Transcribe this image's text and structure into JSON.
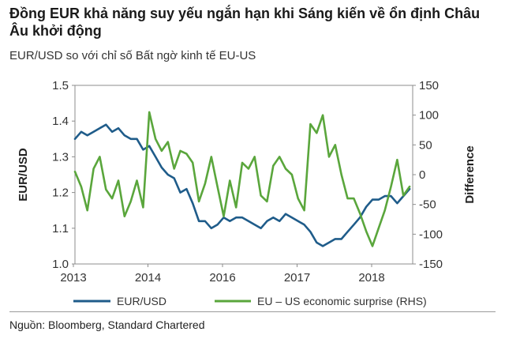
{
  "title": "Đồng EUR khả năng suy yếu ngắn hạn khi Sáng kiến về ổn định Châu Âu khởi động",
  "subtitle": "EUR/USD so với chỉ số Bất ngờ kinh tế EU-US",
  "source": "Nguồn: Bloomberg, Standard Chartered",
  "chart_data": {
    "type": "line",
    "ylabel_left": "EUR/USD",
    "ylabel_right": "Difference",
    "x_ticks": [
      "2013",
      "2014",
      "2016",
      "2017",
      "2018"
    ],
    "y_left_ticks": [
      "1.5",
      "1.4",
      "1.3",
      "1.2",
      "1.1",
      "1.0"
    ],
    "y_right_ticks": [
      "150",
      "100",
      "50",
      "0",
      "-50",
      "-100",
      "-150"
    ],
    "ylim_left": [
      1.0,
      1.5
    ],
    "ylim_right": [
      -150,
      150
    ],
    "xlim": [
      2013.0,
      2018.45
    ],
    "grid": false,
    "legend_position": "bottom",
    "series": [
      {
        "name": "EUR/USD",
        "axis": "left",
        "color": "#1f5c8a",
        "x": [
          2013.0,
          2013.1,
          2013.2,
          2013.3,
          2013.4,
          2013.5,
          2013.6,
          2013.7,
          2013.8,
          2013.9,
          2014.0,
          2014.1,
          2014.2,
          2014.3,
          2014.4,
          2014.5,
          2014.6,
          2014.7,
          2014.8,
          2014.9,
          2015.0,
          2015.1,
          2015.2,
          2015.3,
          2015.4,
          2015.5,
          2015.6,
          2015.7,
          2015.8,
          2015.9,
          2016.0,
          2016.1,
          2016.2,
          2016.3,
          2016.4,
          2016.5,
          2016.6,
          2016.7,
          2016.8,
          2016.9,
          2017.0,
          2017.1,
          2017.2,
          2017.3,
          2017.4,
          2017.5,
          2017.6,
          2017.7,
          2017.8,
          2017.9,
          2018.0,
          2018.1,
          2018.2,
          2018.3,
          2018.4
        ],
        "values": [
          1.35,
          1.37,
          1.36,
          1.37,
          1.38,
          1.39,
          1.37,
          1.38,
          1.36,
          1.35,
          1.35,
          1.32,
          1.33,
          1.3,
          1.27,
          1.25,
          1.24,
          1.2,
          1.21,
          1.17,
          1.12,
          1.12,
          1.1,
          1.11,
          1.13,
          1.12,
          1.13,
          1.13,
          1.12,
          1.11,
          1.1,
          1.12,
          1.13,
          1.12,
          1.14,
          1.13,
          1.12,
          1.11,
          1.09,
          1.06,
          1.05,
          1.06,
          1.07,
          1.07,
          1.09,
          1.11,
          1.13,
          1.16,
          1.18,
          1.18,
          1.19,
          1.19,
          1.17,
          1.19,
          1.21
        ]
      },
      {
        "name": "EU – US economic surprise (RHS)",
        "axis": "right",
        "color": "#5aa63c",
        "x": [
          2013.0,
          2013.1,
          2013.2,
          2013.3,
          2013.4,
          2013.5,
          2013.6,
          2013.7,
          2013.8,
          2013.9,
          2014.0,
          2014.1,
          2014.2,
          2014.3,
          2014.4,
          2014.5,
          2014.6,
          2014.7,
          2014.8,
          2014.9,
          2015.0,
          2015.1,
          2015.2,
          2015.3,
          2015.4,
          2015.5,
          2015.6,
          2015.7,
          2015.8,
          2015.9,
          2016.0,
          2016.1,
          2016.2,
          2016.3,
          2016.4,
          2016.5,
          2016.6,
          2016.7,
          2016.8,
          2016.9,
          2017.0,
          2017.1,
          2017.2,
          2017.3,
          2017.4,
          2017.5,
          2017.6,
          2017.7,
          2017.8,
          2017.9,
          2018.0,
          2018.1,
          2018.2,
          2018.3,
          2018.4
        ],
        "values": [
          5,
          -20,
          -60,
          10,
          30,
          -25,
          -40,
          -10,
          -70,
          -45,
          -10,
          -55,
          105,
          60,
          40,
          55,
          10,
          40,
          35,
          20,
          -45,
          -15,
          30,
          -20,
          -70,
          -10,
          -55,
          20,
          10,
          30,
          -35,
          -45,
          15,
          30,
          10,
          0,
          -40,
          -60,
          85,
          70,
          100,
          30,
          50,
          0,
          -40,
          -40,
          -65,
          -95,
          -120,
          -90,
          -60,
          -20,
          25,
          -35,
          -20
        ]
      }
    ]
  }
}
